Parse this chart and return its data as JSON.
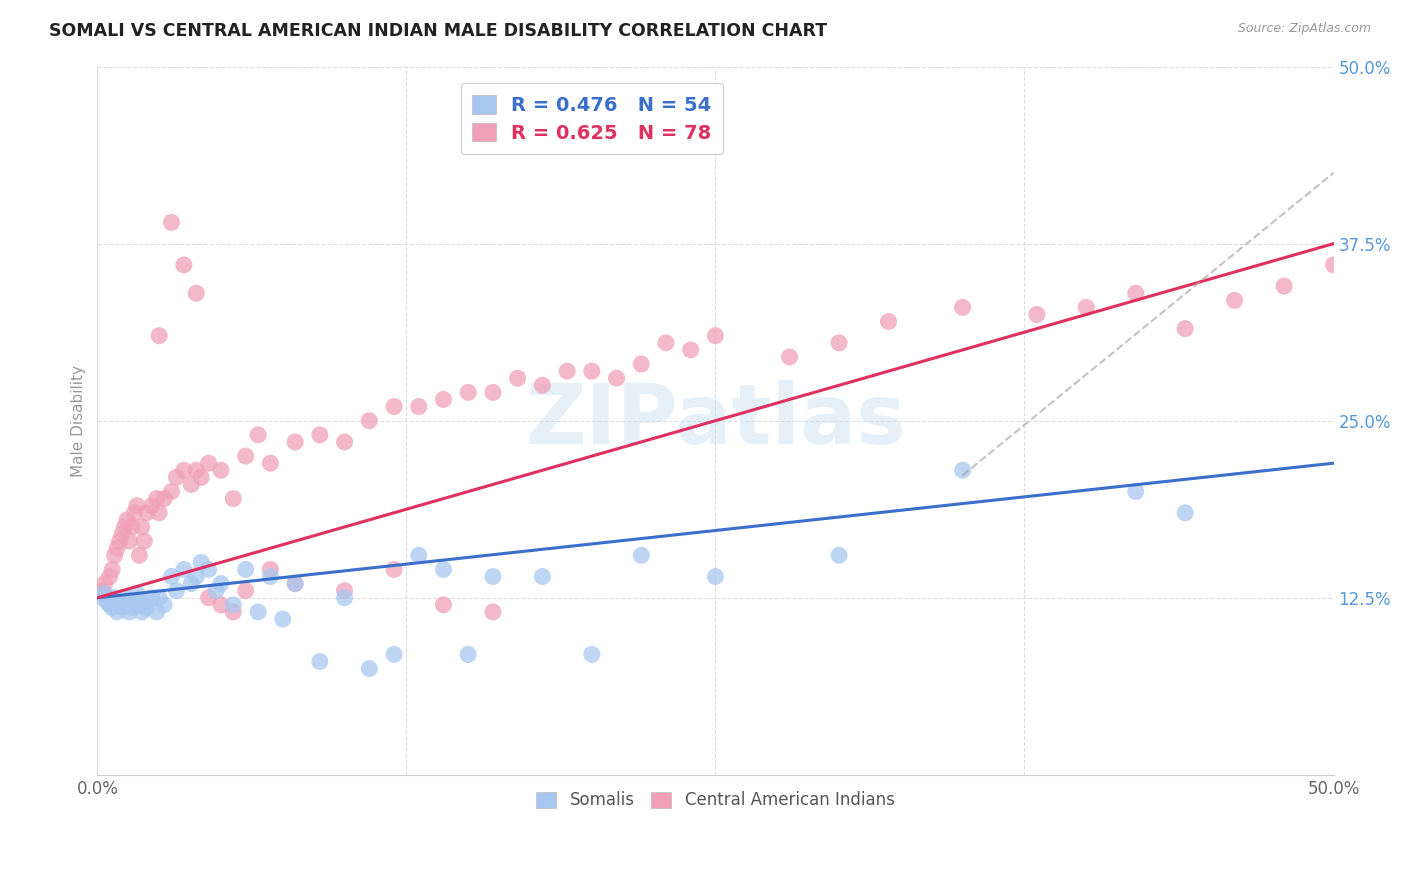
{
  "title": "SOMALI VS CENTRAL AMERICAN INDIAN MALE DISABILITY CORRELATION CHART",
  "source": "Source: ZipAtlas.com",
  "ylabel": "Male Disability",
  "xlim": [
    0.0,
    0.5
  ],
  "ylim": [
    0.0,
    0.5
  ],
  "somali_R": 0.476,
  "somali_N": 54,
  "central_R": 0.625,
  "central_N": 78,
  "somali_color": "#A8C8F0",
  "central_color": "#F0A0B8",
  "somali_line_color": "#3B6FCC",
  "central_line_color": "#E03060",
  "watermark": "ZIPatlas",
  "somali_x": [
    0.002,
    0.003,
    0.004,
    0.005,
    0.006,
    0.007,
    0.008,
    0.009,
    0.01,
    0.011,
    0.012,
    0.013,
    0.014,
    0.015,
    0.016,
    0.017,
    0.018,
    0.019,
    0.02,
    0.022,
    0.024,
    0.025,
    0.027,
    0.03,
    0.032,
    0.035,
    0.038,
    0.04,
    0.042,
    0.045,
    0.048,
    0.05,
    0.055,
    0.06,
    0.065,
    0.07,
    0.075,
    0.08,
    0.09,
    0.1,
    0.11,
    0.12,
    0.13,
    0.14,
    0.15,
    0.16,
    0.18,
    0.2,
    0.22,
    0.25,
    0.3,
    0.35,
    0.42,
    0.44
  ],
  "somali_y": [
    0.125,
    0.128,
    0.122,
    0.12,
    0.118,
    0.125,
    0.115,
    0.122,
    0.118,
    0.125,
    0.12,
    0.115,
    0.118,
    0.122,
    0.128,
    0.12,
    0.115,
    0.122,
    0.118,
    0.125,
    0.115,
    0.125,
    0.12,
    0.14,
    0.13,
    0.145,
    0.135,
    0.14,
    0.15,
    0.145,
    0.13,
    0.135,
    0.12,
    0.145,
    0.115,
    0.14,
    0.11,
    0.135,
    0.08,
    0.125,
    0.075,
    0.085,
    0.155,
    0.145,
    0.085,
    0.14,
    0.14,
    0.085,
    0.155,
    0.14,
    0.155,
    0.215,
    0.2,
    0.185
  ],
  "central_x": [
    0.002,
    0.003,
    0.004,
    0.005,
    0.006,
    0.007,
    0.008,
    0.009,
    0.01,
    0.011,
    0.012,
    0.013,
    0.014,
    0.015,
    0.016,
    0.017,
    0.018,
    0.019,
    0.02,
    0.022,
    0.024,
    0.025,
    0.027,
    0.03,
    0.032,
    0.035,
    0.038,
    0.04,
    0.042,
    0.045,
    0.05,
    0.055,
    0.06,
    0.065,
    0.07,
    0.08,
    0.09,
    0.1,
    0.11,
    0.12,
    0.13,
    0.14,
    0.15,
    0.16,
    0.17,
    0.18,
    0.19,
    0.2,
    0.21,
    0.22,
    0.23,
    0.24,
    0.25,
    0.28,
    0.3,
    0.32,
    0.35,
    0.38,
    0.4,
    0.42,
    0.44,
    0.46,
    0.48,
    0.5,
    0.025,
    0.03,
    0.035,
    0.04,
    0.045,
    0.05,
    0.055,
    0.06,
    0.07,
    0.08,
    0.1,
    0.12,
    0.14,
    0.16
  ],
  "central_y": [
    0.13,
    0.135,
    0.125,
    0.14,
    0.145,
    0.155,
    0.16,
    0.165,
    0.17,
    0.175,
    0.18,
    0.165,
    0.175,
    0.185,
    0.19,
    0.155,
    0.175,
    0.165,
    0.185,
    0.19,
    0.195,
    0.185,
    0.195,
    0.2,
    0.21,
    0.215,
    0.205,
    0.215,
    0.21,
    0.22,
    0.215,
    0.195,
    0.225,
    0.24,
    0.22,
    0.235,
    0.24,
    0.235,
    0.25,
    0.26,
    0.26,
    0.265,
    0.27,
    0.27,
    0.28,
    0.275,
    0.285,
    0.285,
    0.28,
    0.29,
    0.305,
    0.3,
    0.31,
    0.295,
    0.305,
    0.32,
    0.33,
    0.325,
    0.33,
    0.34,
    0.315,
    0.335,
    0.345,
    0.36,
    0.31,
    0.39,
    0.36,
    0.34,
    0.125,
    0.12,
    0.115,
    0.13,
    0.145,
    0.135,
    0.13,
    0.145,
    0.12,
    0.115
  ]
}
